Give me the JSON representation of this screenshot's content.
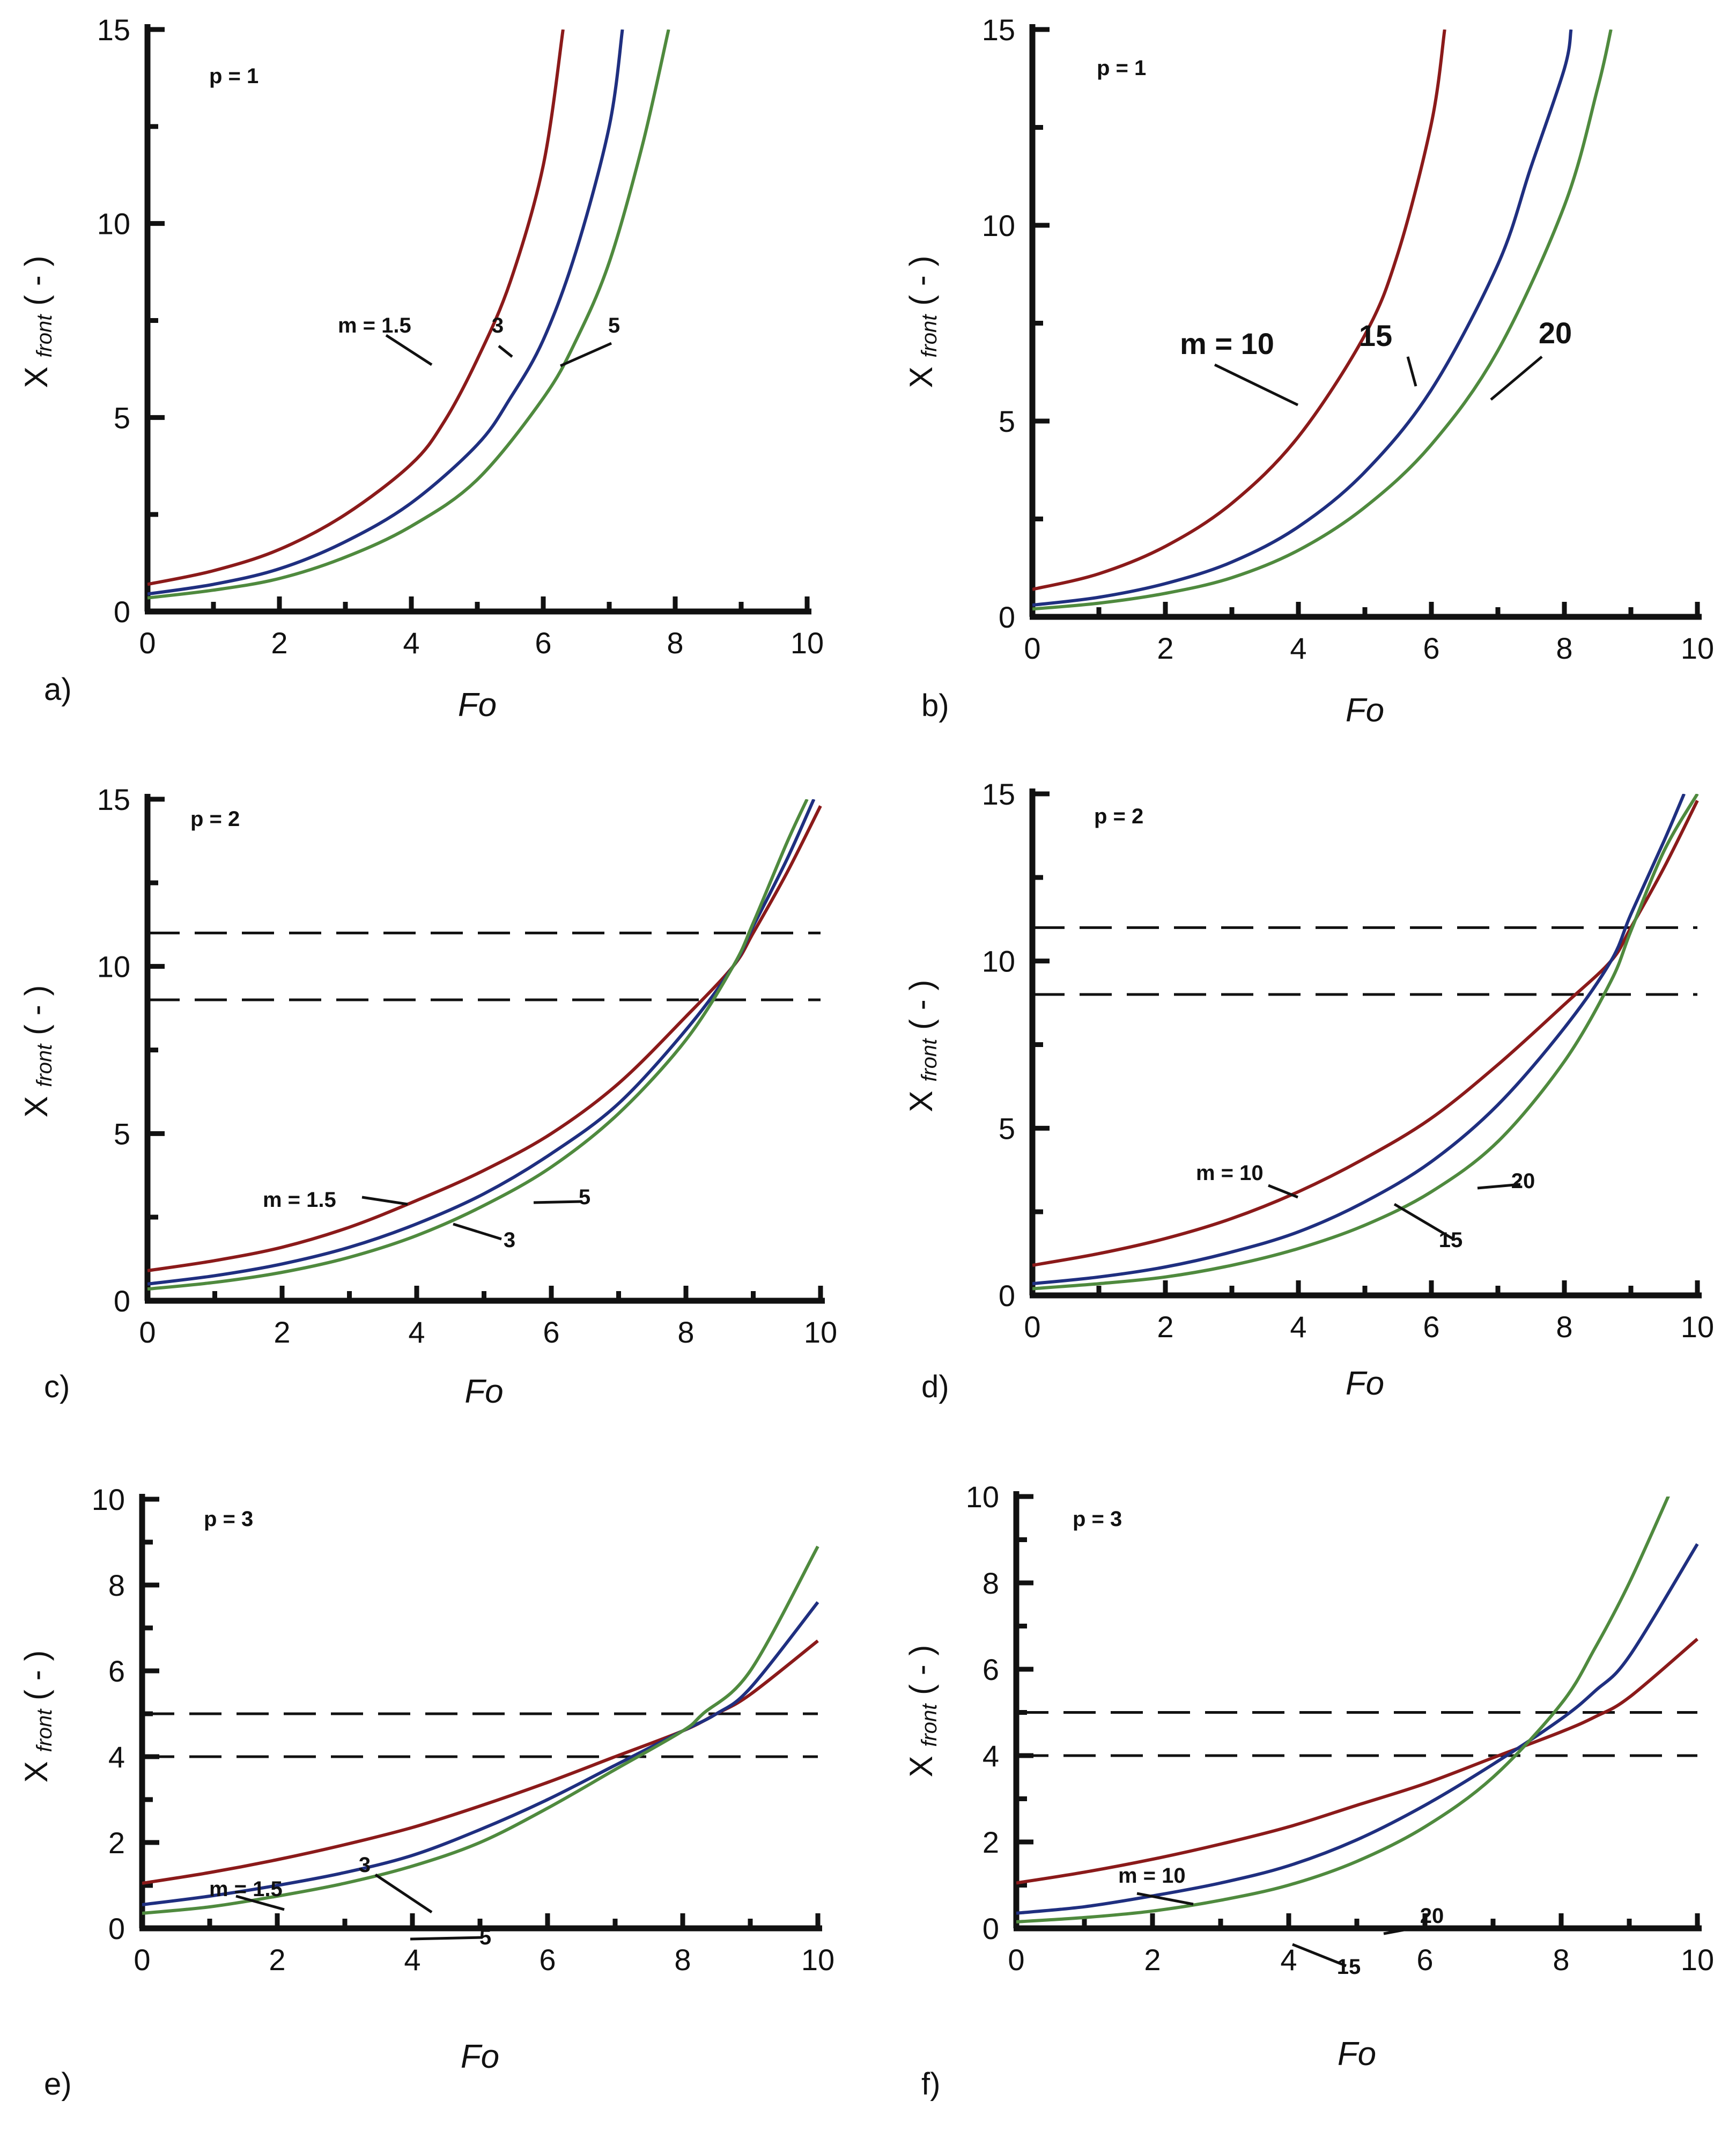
{
  "chart_data": [
    {
      "type": "line",
      "panel": "a)",
      "param": "p = 1",
      "xlabel": "Fo",
      "ylabel": {
        "main": "X",
        "sub": "front",
        "unit": "( - )"
      },
      "xlim": [
        0,
        10
      ],
      "ylim": [
        0,
        15
      ],
      "xticks": [
        0,
        2,
        4,
        6,
        8,
        10
      ],
      "yticks": [
        0,
        5,
        10,
        15
      ],
      "series": [
        {
          "name": "m = 1.5",
          "color": "#8b1a1a",
          "x": [
            0,
            1,
            2,
            3,
            4,
            4.5,
            5,
            5.5,
            6,
            6.3
          ],
          "y": [
            0.7,
            1.05,
            1.6,
            2.5,
            3.8,
            4.9,
            6.5,
            8.5,
            11.5,
            15
          ]
        },
        {
          "name": "3",
          "color": "#1f2f80",
          "x": [
            0,
            1,
            2,
            3,
            4,
            5,
            5.5,
            6,
            6.5,
            7,
            7.2
          ],
          "y": [
            0.45,
            0.7,
            1.1,
            1.8,
            2.8,
            4.3,
            5.5,
            7.0,
            9.3,
            12.5,
            15
          ]
        },
        {
          "name": "5",
          "color": "#4f8a3e",
          "x": [
            0,
            1,
            2,
            3,
            4,
            5,
            6,
            6.5,
            7,
            7.5,
            7.9
          ],
          "y": [
            0.35,
            0.55,
            0.85,
            1.4,
            2.2,
            3.4,
            5.5,
            7.0,
            9.0,
            12.0,
            15
          ]
        }
      ],
      "annotations": [
        "m = 1.5",
        "3",
        "5"
      ]
    },
    {
      "type": "line",
      "panel": "b)",
      "param": "p = 1",
      "xlabel": "Fo",
      "ylabel": {
        "main": "X",
        "sub": "front",
        "unit": "( - )"
      },
      "xlim": [
        0,
        10
      ],
      "ylim": [
        0,
        15
      ],
      "xticks": [
        0,
        2,
        4,
        6,
        8,
        10
      ],
      "yticks": [
        0,
        5,
        10,
        15
      ],
      "series": [
        {
          "name": "m = 10",
          "color": "#8b1a1a",
          "x": [
            0,
            1,
            2,
            3,
            4,
            5,
            5.5,
            6,
            6.2
          ],
          "y": [
            0.7,
            1.1,
            1.8,
            2.9,
            4.6,
            7.2,
            9.3,
            12.6,
            15
          ]
        },
        {
          "name": "15",
          "color": "#1f2f80",
          "x": [
            0,
            1,
            2,
            3,
            4,
            5,
            6,
            7,
            7.5,
            8,
            8.1
          ],
          "y": [
            0.3,
            0.5,
            0.85,
            1.4,
            2.3,
            3.7,
            5.8,
            9.0,
            11.5,
            14.0,
            15
          ]
        },
        {
          "name": "20",
          "color": "#4f8a3e",
          "x": [
            0,
            1,
            2,
            3,
            4,
            5,
            6,
            7,
            8,
            8.5,
            8.7
          ],
          "y": [
            0.2,
            0.35,
            0.6,
            1.0,
            1.7,
            2.8,
            4.4,
            6.8,
            10.5,
            13.5,
            15
          ]
        }
      ],
      "annotations": [
        "m = 10",
        "15",
        "20"
      ]
    },
    {
      "type": "line",
      "panel": "c)",
      "param": "p = 2",
      "xlabel": "Fo",
      "ylabel": {
        "main": "X",
        "sub": "front",
        "unit": "( - )"
      },
      "xlim": [
        0,
        10
      ],
      "ylim": [
        0,
        15
      ],
      "xticks": [
        0,
        2,
        4,
        6,
        8,
        10
      ],
      "yticks": [
        0,
        5,
        10,
        15
      ],
      "hlines": [
        9,
        11
      ],
      "series": [
        {
          "name": "m = 1.5",
          "color": "#8b1a1a",
          "x": [
            0,
            1,
            2,
            3,
            4,
            5,
            6,
            7,
            8,
            8.7,
            9,
            9.5,
            10
          ],
          "y": [
            0.9,
            1.2,
            1.6,
            2.2,
            3.0,
            3.9,
            5.0,
            6.5,
            8.5,
            10.0,
            11.0,
            12.8,
            14.8
          ]
        },
        {
          "name": "3",
          "color": "#1f2f80",
          "x": [
            0,
            1,
            2,
            3,
            4,
            5,
            6,
            7,
            8,
            8.7,
            9,
            9.5,
            9.9
          ],
          "y": [
            0.5,
            0.75,
            1.1,
            1.6,
            2.3,
            3.2,
            4.4,
            5.9,
            8.1,
            10.0,
            11.2,
            13.2,
            15
          ]
        },
        {
          "name": "5",
          "color": "#4f8a3e",
          "x": [
            0,
            1,
            2,
            3,
            4,
            5,
            6,
            7,
            8,
            8.7,
            9,
            9.5,
            9.8
          ],
          "y": [
            0.35,
            0.55,
            0.85,
            1.3,
            1.95,
            2.85,
            4.0,
            5.6,
            7.8,
            10.0,
            11.3,
            13.7,
            15
          ]
        }
      ],
      "annotations": [
        "m = 1.5",
        "3",
        "5"
      ]
    },
    {
      "type": "line",
      "panel": "d)",
      "param": "p = 2",
      "xlabel": "Fo",
      "ylabel": {
        "main": "X",
        "sub": "front",
        "unit": "( - )"
      },
      "xlim": [
        0,
        10
      ],
      "ylim": [
        0,
        15
      ],
      "xticks": [
        0,
        2,
        4,
        6,
        8,
        10
      ],
      "yticks": [
        0,
        5,
        10,
        15
      ],
      "hlines": [
        9,
        11
      ],
      "series": [
        {
          "name": "m = 10",
          "color": "#8b1a1a",
          "x": [
            0,
            1,
            2,
            3,
            4,
            5,
            6,
            7,
            8,
            8.7,
            9,
            9.5,
            10
          ],
          "y": [
            0.9,
            1.25,
            1.7,
            2.3,
            3.1,
            4.1,
            5.3,
            6.9,
            8.7,
            10.0,
            11.0,
            12.8,
            14.8
          ]
        },
        {
          "name": "15",
          "color": "#1f2f80",
          "x": [
            0,
            1,
            2,
            3,
            4,
            5,
            6,
            7,
            8,
            8.7,
            9,
            9.5,
            9.8
          ],
          "y": [
            0.35,
            0.55,
            0.85,
            1.3,
            1.9,
            2.8,
            4.0,
            5.7,
            8.0,
            10.0,
            11.4,
            13.6,
            15
          ]
        },
        {
          "name": "20",
          "color": "#4f8a3e",
          "x": [
            0,
            1,
            2,
            3,
            4,
            5,
            6,
            7,
            8,
            8.7,
            9,
            9.5,
            10
          ],
          "y": [
            0.2,
            0.35,
            0.55,
            0.9,
            1.4,
            2.1,
            3.1,
            4.6,
            7.0,
            9.4,
            10.9,
            13.3,
            15
          ]
        }
      ],
      "annotations": [
        "m = 10",
        "15",
        "20"
      ]
    },
    {
      "type": "line",
      "panel": "e)",
      "param": "p = 3",
      "xlabel": "Fo",
      "ylabel": {
        "main": "X",
        "sub": "front",
        "unit": "( - )"
      },
      "xlim": [
        0,
        10
      ],
      "ylim": [
        0,
        10
      ],
      "xticks": [
        0,
        2,
        4,
        6,
        8,
        10
      ],
      "yticks": [
        0,
        2,
        4,
        6,
        8,
        10
      ],
      "hlines": [
        4,
        5
      ],
      "series": [
        {
          "name": "m = 1.5",
          "color": "#8b1a1a",
          "x": [
            0,
            1,
            2,
            3,
            4,
            5,
            6,
            7,
            8,
            8.5,
            9,
            10
          ],
          "y": [
            1.05,
            1.3,
            1.6,
            1.95,
            2.35,
            2.85,
            3.4,
            4.0,
            4.6,
            5.0,
            5.45,
            6.7
          ]
        },
        {
          "name": "3",
          "color": "#1f2f80",
          "x": [
            0,
            1,
            2,
            3,
            4,
            5,
            6,
            7,
            8,
            8.5,
            9,
            10
          ],
          "y": [
            0.55,
            0.75,
            1.0,
            1.3,
            1.7,
            2.3,
            3.0,
            3.8,
            4.6,
            5.0,
            5.6,
            7.6
          ]
        },
        {
          "name": "5",
          "color": "#4f8a3e",
          "x": [
            0,
            1,
            2,
            3,
            4,
            5,
            6,
            7,
            8,
            8.3,
            9,
            10
          ],
          "y": [
            0.35,
            0.5,
            0.75,
            1.05,
            1.45,
            2.0,
            2.8,
            3.7,
            4.6,
            5.0,
            6.0,
            8.9
          ]
        }
      ],
      "annotations": [
        "m = 1.5",
        "3",
        "5"
      ]
    },
    {
      "type": "line",
      "panel": "f)",
      "param": "p = 3",
      "xlabel": "Fo",
      "ylabel": {
        "main": "X",
        "sub": "front",
        "unit": "( - )"
      },
      "xlim": [
        0,
        10
      ],
      "ylim": [
        0,
        10
      ],
      "xticks": [
        0,
        2,
        4,
        6,
        8,
        10
      ],
      "yticks": [
        0,
        2,
        4,
        6,
        8,
        10
      ],
      "hlines": [
        4,
        5
      ],
      "series": [
        {
          "name": "m = 10",
          "color": "#8b1a1a",
          "x": [
            0,
            1,
            2,
            3,
            4,
            5,
            6,
            7,
            8,
            8.5,
            9,
            10
          ],
          "y": [
            1.05,
            1.3,
            1.6,
            1.95,
            2.35,
            2.85,
            3.35,
            3.95,
            4.55,
            4.9,
            5.35,
            6.7
          ]
        },
        {
          "name": "15",
          "color": "#1f2f80",
          "x": [
            0,
            1,
            2,
            3,
            4,
            5,
            6,
            7,
            8,
            8.5,
            9,
            10
          ],
          "y": [
            0.35,
            0.5,
            0.75,
            1.05,
            1.45,
            2.05,
            2.85,
            3.8,
            4.85,
            5.5,
            6.3,
            8.9
          ]
        },
        {
          "name": "20",
          "color": "#4f8a3e",
          "x": [
            0,
            1,
            2,
            3,
            4,
            5,
            6,
            7,
            8,
            8.5,
            9,
            9.6
          ],
          "y": [
            0.15,
            0.25,
            0.4,
            0.65,
            1.0,
            1.55,
            2.35,
            3.5,
            5.2,
            6.5,
            8.0,
            10.1
          ]
        }
      ],
      "annotations": [
        "m = 10",
        "15",
        "20"
      ]
    }
  ]
}
